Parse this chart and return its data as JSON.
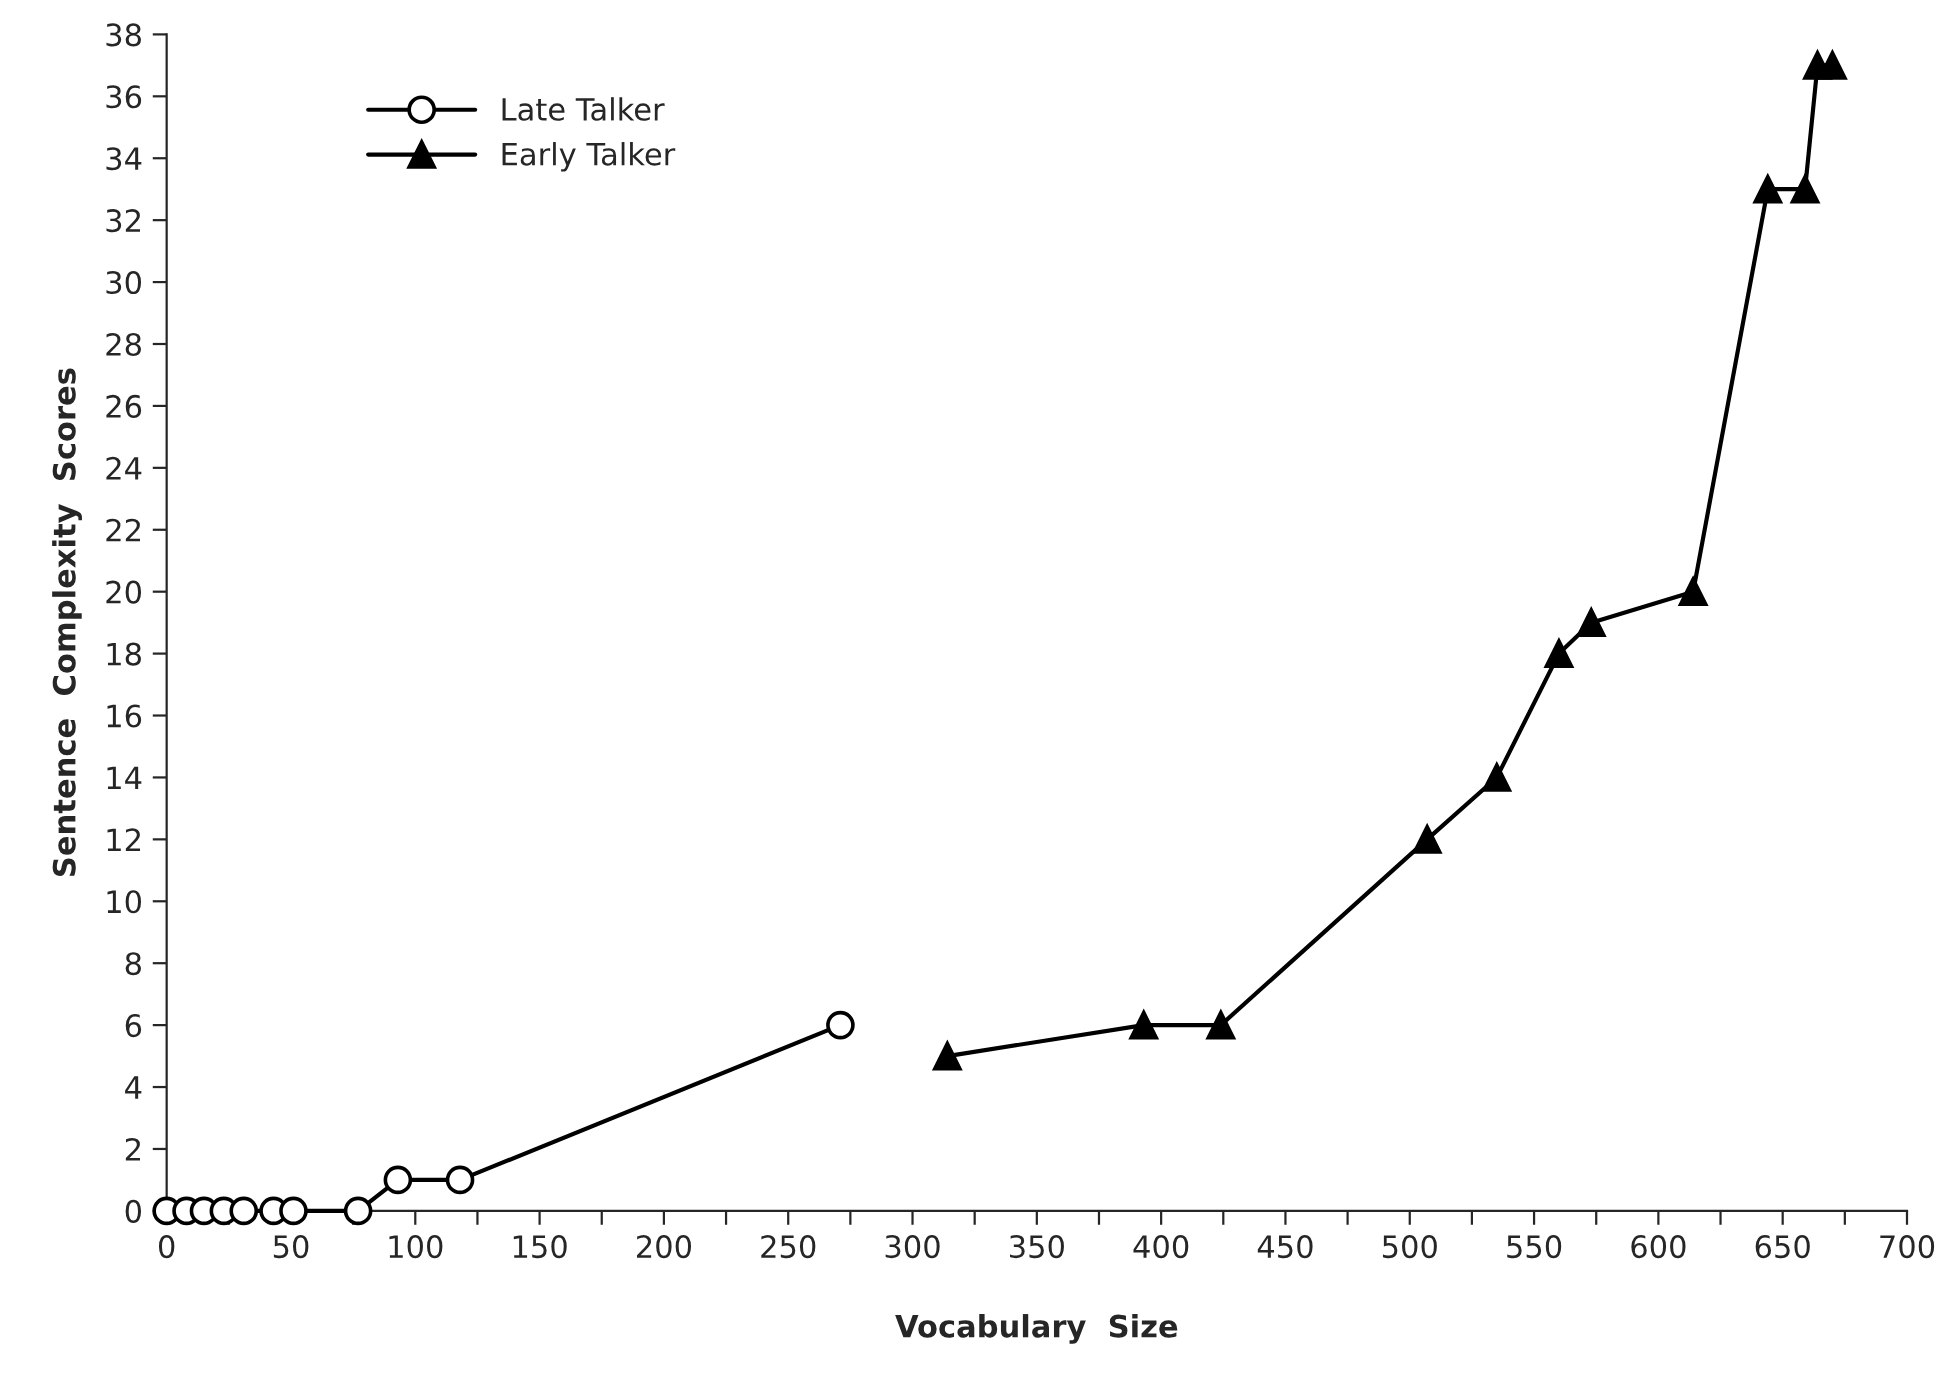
{
  "chart_data": {
    "type": "line",
    "xlabel": "Vocabulary  Size",
    "ylabel": "Sentence  Complexity  Scores",
    "xlim": [
      0,
      700
    ],
    "ylim": [
      0,
      38
    ],
    "xticks": [
      0,
      {
        "value": 25,
        "label": null
      },
      50,
      {
        "value": 75,
        "label": null
      },
      100,
      {
        "value": 125,
        "label": null
      },
      150,
      {
        "value": 175,
        "label": null
      },
      200,
      {
        "value": 225,
        "label": null
      },
      250,
      {
        "value": 275,
        "label": null
      },
      300,
      {
        "value": 325,
        "label": null
      },
      350,
      {
        "value": 375,
        "label": null
      },
      400,
      {
        "value": 425,
        "label": null
      },
      450,
      {
        "value": 475,
        "label": null
      },
      500,
      {
        "value": 525,
        "label": null
      },
      550,
      {
        "value": 575,
        "label": null
      },
      600,
      {
        "value": 625,
        "label": null
      },
      650,
      {
        "value": 675,
        "label": null
      },
      700
    ],
    "yticks": [
      0,
      2,
      4,
      6,
      8,
      10,
      12,
      14,
      16,
      18,
      20,
      22,
      24,
      26,
      28,
      30,
      32,
      34,
      36,
      38
    ],
    "grid": false,
    "legend": "top left",
    "line_style": "solid",
    "series": [
      {
        "name": "Late Talker",
        "color": "#000000",
        "marker": "circle",
        "x": [
          0,
          8,
          15,
          23,
          31,
          43,
          51,
          77,
          93,
          118,
          271
        ],
        "values": [
          0,
          0,
          0,
          0,
          0,
          0,
          0,
          0,
          1,
          1,
          6
        ]
      },
      {
        "name": "Early Talker",
        "color": "#000000",
        "marker": "triangle",
        "x": [
          314,
          393,
          424,
          507,
          535,
          560,
          573,
          614,
          644,
          659,
          664,
          670
        ],
        "values": [
          5,
          6,
          6,
          12,
          14,
          18,
          19,
          20,
          33,
          33,
          37,
          37
        ]
      }
    ]
  }
}
